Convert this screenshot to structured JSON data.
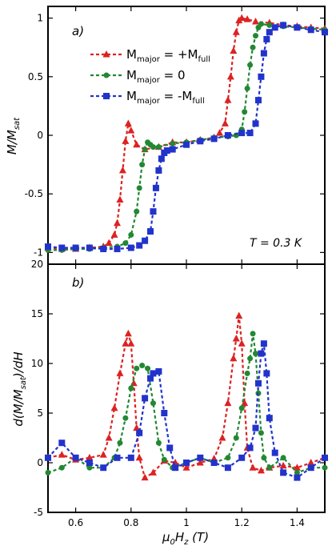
{
  "chart_data": [
    {
      "type": "line",
      "panel_label": "a)",
      "ylabel": "M/M_sat",
      "ylabel_parts": {
        "main": "M/M",
        "sub": "sat"
      },
      "ylim": [
        -1.1,
        1.1
      ],
      "xlim": [
        0.5,
        1.5
      ],
      "yticks": [
        1,
        0.5,
        0,
        -0.5,
        -1
      ],
      "ytick_labels": [
        "1",
        "0.5",
        "0",
        "-0.5",
        "-1"
      ],
      "annotation": "T = 0.3 K",
      "legend_position": "top-center",
      "series": [
        {
          "name": "M_major = +M_full",
          "legend": {
            "m": "M",
            "sub": "major",
            "rest": " = +M",
            "sub2": "full"
          },
          "color": "#dd2222",
          "marker": "triangle",
          "x": [
            0.5,
            0.55,
            0.6,
            0.65,
            0.7,
            0.72,
            0.74,
            0.75,
            0.76,
            0.77,
            0.78,
            0.79,
            0.8,
            0.82,
            0.85,
            0.9,
            0.95,
            1.0,
            1.05,
            1.1,
            1.12,
            1.14,
            1.15,
            1.16,
            1.17,
            1.18,
            1.19,
            1.2,
            1.22,
            1.25,
            1.3,
            1.35,
            1.4,
            1.45,
            1.5
          ],
          "y": [
            -0.96,
            -0.97,
            -0.97,
            -0.96,
            -0.95,
            -0.92,
            -0.85,
            -0.75,
            -0.55,
            -0.3,
            -0.05,
            0.1,
            0.04,
            -0.08,
            -0.12,
            -0.1,
            -0.06,
            -0.06,
            -0.04,
            -0.02,
            0.02,
            0.1,
            0.3,
            0.5,
            0.72,
            0.88,
            0.98,
            1.0,
            0.99,
            0.97,
            0.96,
            0.94,
            0.93,
            0.92,
            0.91
          ]
        },
        {
          "name": "M_major = 0",
          "legend": {
            "m": "M",
            "sub": "major",
            "rest": " = 0",
            "sub2": ""
          },
          "color": "#228833",
          "marker": "circle",
          "x": [
            0.5,
            0.55,
            0.6,
            0.65,
            0.7,
            0.75,
            0.78,
            0.8,
            0.82,
            0.83,
            0.84,
            0.85,
            0.86,
            0.87,
            0.88,
            0.9,
            0.95,
            1.0,
            1.05,
            1.1,
            1.15,
            1.18,
            1.2,
            1.21,
            1.22,
            1.23,
            1.24,
            1.25,
            1.26,
            1.27,
            1.3,
            1.35,
            1.4,
            1.45,
            1.5
          ],
          "y": [
            -0.98,
            -0.98,
            -0.97,
            -0.97,
            -0.96,
            -0.95,
            -0.92,
            -0.85,
            -0.65,
            -0.45,
            -0.25,
            -0.12,
            -0.06,
            -0.08,
            -0.1,
            -0.1,
            -0.07,
            -0.06,
            -0.04,
            -0.02,
            -0.01,
            0.0,
            0.05,
            0.2,
            0.4,
            0.6,
            0.75,
            0.85,
            0.92,
            0.95,
            0.94,
            0.93,
            0.92,
            0.91,
            0.9
          ]
        },
        {
          "name": "M_major = -M_full",
          "legend": {
            "m": "M",
            "sub": "major",
            "rest": " = -M",
            "sub2": "full"
          },
          "color": "#2233cc",
          "marker": "square",
          "x": [
            0.5,
            0.55,
            0.6,
            0.65,
            0.7,
            0.75,
            0.8,
            0.83,
            0.85,
            0.87,
            0.88,
            0.89,
            0.9,
            0.91,
            0.92,
            0.93,
            0.95,
            1.0,
            1.05,
            1.1,
            1.15,
            1.2,
            1.23,
            1.25,
            1.26,
            1.27,
            1.28,
            1.29,
            1.3,
            1.32,
            1.35,
            1.4,
            1.45,
            1.5
          ],
          "y": [
            -0.95,
            -0.96,
            -0.96,
            -0.96,
            -0.97,
            -0.97,
            -0.96,
            -0.94,
            -0.9,
            -0.82,
            -0.65,
            -0.45,
            -0.3,
            -0.2,
            -0.15,
            -0.13,
            -0.12,
            -0.08,
            -0.05,
            -0.03,
            0.0,
            0.02,
            0.02,
            0.1,
            0.3,
            0.5,
            0.7,
            0.82,
            0.88,
            0.92,
            0.94,
            0.92,
            0.9,
            0.88
          ]
        }
      ]
    },
    {
      "type": "line",
      "panel_label": "b)",
      "ylabel": "d(M/M_sat)/dH",
      "ylabel_parts": {
        "pre": "d(M/M",
        "sub": "sat",
        "post": ")/dH"
      },
      "xlabel": "μ0Hz (T)",
      "xlabel_parts": {
        "mu": "μ",
        "sub0": "0",
        "h": "H",
        "subz": "z",
        "unit": " (T)"
      },
      "ylim": [
        -5,
        20
      ],
      "xlim": [
        0.5,
        1.5
      ],
      "yticks": [
        20,
        15,
        10,
        5,
        0,
        -5
      ],
      "ytick_labels": [
        "20",
        "15",
        "10",
        "5",
        "0",
        "-5"
      ],
      "xticks": [
        0.6,
        0.8,
        1,
        1.2,
        1.4
      ],
      "xtick_labels": [
        "0.6",
        "0.8",
        "1",
        "1.2",
        "1.4"
      ],
      "series": [
        {
          "name": "M_major = +M_full",
          "color": "#dd2222",
          "marker": "triangle",
          "x": [
            0.5,
            0.55,
            0.6,
            0.65,
            0.7,
            0.72,
            0.74,
            0.76,
            0.78,
            0.79,
            0.8,
            0.81,
            0.82,
            0.83,
            0.85,
            0.88,
            0.92,
            0.96,
            1.0,
            1.05,
            1.1,
            1.13,
            1.15,
            1.17,
            1.18,
            1.19,
            1.2,
            1.21,
            1.22,
            1.24,
            1.27,
            1.3,
            1.35,
            1.4,
            1.45,
            1.5
          ],
          "y": [
            0.5,
            0.8,
            0.3,
            0.5,
            0.8,
            2.5,
            5.5,
            9.0,
            12.0,
            13.0,
            12.0,
            8.0,
            3.5,
            0.5,
            -1.5,
            -1.0,
            0.2,
            0.0,
            -0.5,
            0.0,
            0.4,
            2.5,
            6.0,
            10.5,
            12.5,
            14.8,
            12.0,
            6.0,
            1.5,
            -0.5,
            -0.8,
            -0.5,
            -0.3,
            -0.5,
            0.0,
            0.5
          ]
        },
        {
          "name": "M_major = 0",
          "color": "#228833",
          "marker": "circle",
          "x": [
            0.5,
            0.55,
            0.6,
            0.65,
            0.7,
            0.74,
            0.76,
            0.78,
            0.8,
            0.82,
            0.84,
            0.86,
            0.88,
            0.9,
            0.92,
            0.95,
            1.0,
            1.05,
            1.1,
            1.15,
            1.18,
            1.2,
            1.22,
            1.23,
            1.24,
            1.25,
            1.26,
            1.27,
            1.28,
            1.3,
            1.35,
            1.4,
            1.45,
            1.5
          ],
          "y": [
            -1.0,
            -0.5,
            0.5,
            -0.5,
            -0.5,
            0.5,
            2.0,
            4.5,
            7.5,
            9.5,
            9.8,
            9.5,
            6.0,
            2.0,
            0.3,
            -0.5,
            0.0,
            0.5,
            0.0,
            0.5,
            2.5,
            5.5,
            9.0,
            10.5,
            13.0,
            11.0,
            7.0,
            3.0,
            0.5,
            -0.5,
            0.5,
            -1.0,
            -0.5,
            -0.5
          ]
        },
        {
          "name": "M_major = -M_full",
          "color": "#2233cc",
          "marker": "square",
          "x": [
            0.5,
            0.55,
            0.6,
            0.65,
            0.7,
            0.75,
            0.8,
            0.83,
            0.85,
            0.87,
            0.88,
            0.9,
            0.92,
            0.94,
            0.96,
            1.0,
            1.05,
            1.1,
            1.15,
            1.2,
            1.23,
            1.25,
            1.26,
            1.27,
            1.28,
            1.29,
            1.3,
            1.32,
            1.35,
            1.4,
            1.45,
            1.5
          ],
          "y": [
            0.5,
            2.0,
            0.5,
            0.0,
            -0.5,
            0.5,
            0.5,
            3.0,
            6.5,
            8.5,
            9.0,
            9.2,
            5.0,
            1.5,
            -0.5,
            0.0,
            0.5,
            0.0,
            -0.5,
            0.5,
            1.5,
            3.5,
            8.0,
            11.0,
            12.0,
            9.0,
            4.5,
            1.0,
            -1.0,
            -1.5,
            -0.5,
            0.5
          ]
        }
      ]
    }
  ]
}
